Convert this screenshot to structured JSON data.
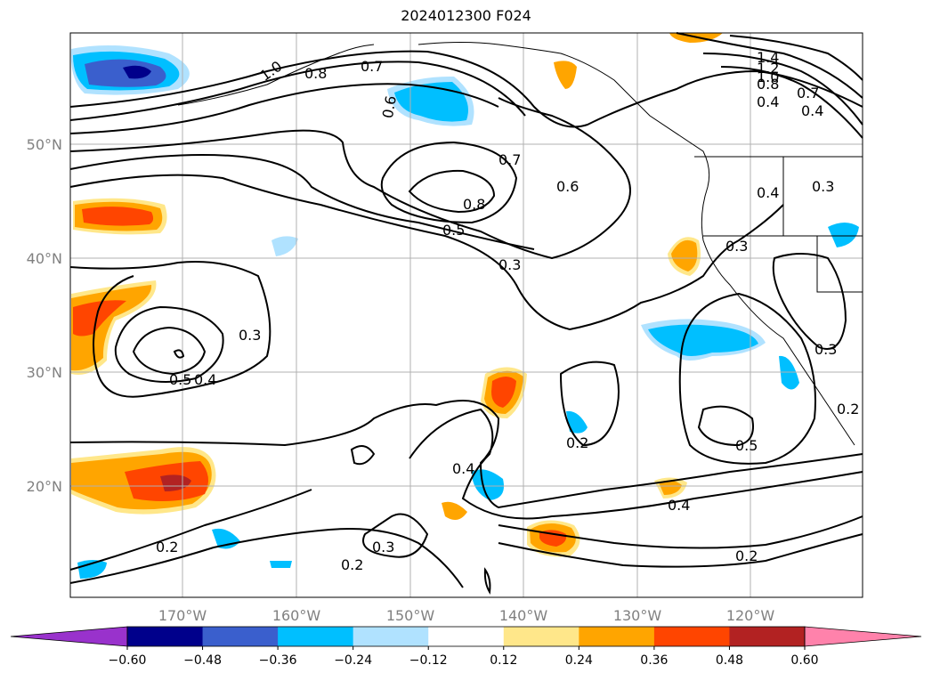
{
  "title": "2024012300 F024",
  "map": {
    "lat_ticks": [
      "50°N",
      "40°N",
      "30°N",
      "20°N"
    ],
    "lon_ticks": [
      "170°W",
      "160°W",
      "150°W",
      "140°W",
      "130°W",
      "120°W"
    ],
    "contour_labels": [
      "1.0",
      "0.8",
      "0.7",
      "1.4",
      "1.2",
      "1.0",
      "0.8",
      "0.4",
      "0.7",
      "0.6",
      "0.7",
      "0.8",
      "0.6",
      "0.5",
      "0.4",
      "0.3",
      "0.3",
      "0.3",
      "0.5",
      "0.4",
      "0.3",
      "0.3",
      "0.2",
      "0.4",
      "0.5",
      "0.4",
      "0.2",
      "0.2",
      "0.3",
      "0.2",
      "0.2",
      "0.4"
    ]
  },
  "colorbar": {
    "labels": [
      "−0.60",
      "−0.48",
      "−0.36",
      "−0.24",
      "−0.12",
      "0.12",
      "0.24",
      "0.36",
      "0.48",
      "0.60"
    ],
    "colors": [
      "#9932cc",
      "#00008b",
      "#3a5fcd",
      "#00bfff",
      "#b0e2ff",
      "#ffffff",
      "#ffe78a",
      "#ffa500",
      "#ff4500",
      "#b22222",
      "#ff82ab"
    ]
  }
}
